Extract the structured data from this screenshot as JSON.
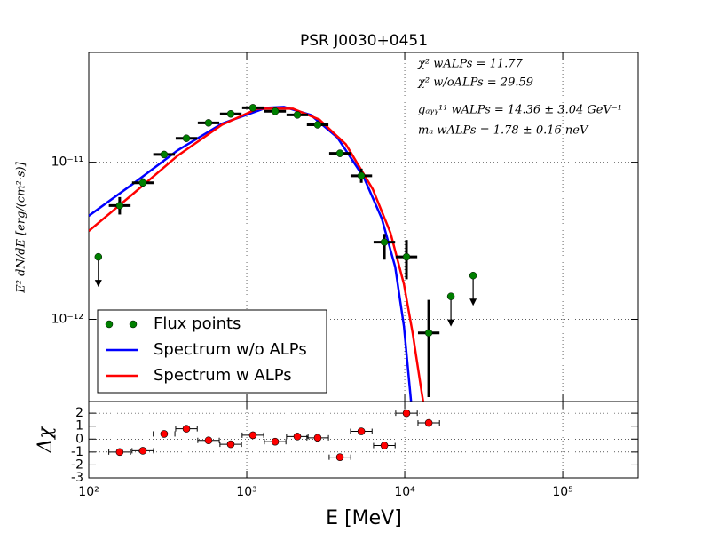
{
  "chart_data": [
    {
      "type": "line",
      "title": "PSR J0030+0451",
      "ylabel": "E² dN/dE [erg/(cm²·s)]",
      "annotations": [
        "χ² wALPs = 11.77",
        "χ² w/oALPs = 29.59",
        "gₐᵧᵧ¹¹ wALPs = 14.36 ± 3.04 GeV⁻¹",
        "mₐ wALPs = 1.78 ± 0.16 neV"
      ],
      "xscale": "log",
      "yscale": "log",
      "xlim": [
        100,
        300000
      ],
      "ylim": [
        3e-13,
        5e-11
      ],
      "xticks": [
        100,
        1000,
        10000,
        100000
      ],
      "yticks": [
        {
          "value": 1e-11,
          "label": "10⁻¹¹"
        },
        {
          "value": 1e-12,
          "label": "10⁻¹²"
        }
      ],
      "grid": true,
      "legend": "lower left",
      "series": [
        {
          "name": "Flux points",
          "type": "scatter",
          "color": "#007f00",
          "x": [
            115,
            157,
            220,
            300,
            415,
            573,
            792,
            1094,
            1513,
            2090,
            2812,
            3890,
            5310,
            7430,
            10260,
            14190,
            19600,
            27100
          ],
          "values": [
            2.5e-12,
            5.3e-12,
            7.4e-12,
            1.12e-11,
            1.42e-11,
            1.78e-11,
            2.03e-11,
            2.22e-11,
            2.11e-11,
            2e-11,
            1.73e-11,
            1.14e-11,
            8.2e-12,
            3.1e-12,
            2.5e-12,
            8.2e-13,
            1.4e-12,
            1.9e-12
          ],
          "upper_limits": [
            true,
            false,
            false,
            false,
            false,
            false,
            false,
            false,
            false,
            false,
            false,
            false,
            false,
            false,
            false,
            false,
            true,
            true
          ],
          "x_low": [
            null,
            134,
            188,
            256,
            355,
            490,
            677,
            935,
            1293,
            1786,
            2403,
            3325,
            4538,
            6350,
            8770,
            12130,
            null,
            null
          ],
          "x_high": [
            null,
            184,
            257,
            351,
            486,
            670,
            927,
            1280,
            1770,
            2445,
            3290,
            4551,
            6213,
            8693,
            12004,
            16600,
            null,
            null
          ],
          "y_low": [
            null,
            4.65e-12,
            7e-12,
            1.07e-11,
            1.37e-11,
            1.72e-11,
            1.97e-11,
            2.15e-11,
            2.04e-11,
            1.93e-11,
            1.66e-11,
            1.08e-11,
            7.4e-12,
            2.4e-12,
            1.8e-12,
            3.2e-13,
            null,
            null
          ],
          "y_high": [
            null,
            6e-12,
            7.9e-12,
            1.17e-11,
            1.47e-11,
            1.84e-11,
            2.1e-11,
            2.29e-11,
            2.18e-11,
            2.07e-11,
            1.8e-11,
            1.2e-11,
            9.1e-12,
            3.5e-12,
            3.2e-12,
            1.33e-12,
            null,
            null
          ]
        },
        {
          "name": "Spectrum w/o ALPs",
          "color": "#0000ff",
          "x": [
            100,
            191,
            365,
            697,
            1330,
            1720,
            2540,
            3740,
            5510,
            7150,
            8700,
            9890,
            11000
          ],
          "values": [
            4.56e-12,
            7.3e-12,
            1.19e-11,
            1.76e-11,
            2.22e-11,
            2.25e-11,
            2e-11,
            1.44e-11,
            8e-12,
            4.4e-12,
            2.16e-12,
            9e-13,
            2.9e-13
          ]
        },
        {
          "name": "Spectrum w ALPs",
          "color": "#ff0000",
          "x": [
            100,
            191,
            365,
            697,
            1166,
            1960,
            2880,
            4240,
            6270,
            8120,
            9890,
            11240,
            12780,
            13650
          ],
          "values": [
            3.65e-12,
            6.3e-12,
            1.1e-11,
            1.73e-11,
            2.19e-11,
            2.19e-11,
            1.87e-11,
            1.3e-11,
            6.75e-12,
            3.56e-12,
            1.67e-12,
            8.1e-13,
            3.47e-13,
            2.3e-13
          ]
        }
      ]
    },
    {
      "type": "scatter",
      "xlabel": "E [MeV]",
      "ylabel": "Δχ",
      "xscale": "log",
      "xlim": [
        100,
        300000
      ],
      "ylim": [
        -3,
        2.9
      ],
      "xticks": [
        {
          "value": 100,
          "label": "10²"
        },
        {
          "value": 1000,
          "label": "10³"
        },
        {
          "value": 10000,
          "label": "10⁴"
        },
        {
          "value": 100000,
          "label": "10⁵"
        }
      ],
      "yticks": [
        -3,
        -2,
        -1,
        0,
        1,
        2
      ],
      "grid": true,
      "color": "#ff0000",
      "x": [
        157,
        220,
        300,
        415,
        573,
        792,
        1094,
        1513,
        2090,
        2812,
        3890,
        5310,
        7430,
        10260,
        14190
      ],
      "values": [
        -1.0,
        -0.9,
        0.4,
        0.8,
        -0.1,
        -0.4,
        0.3,
        -0.2,
        0.2,
        0.1,
        -1.4,
        0.6,
        -0.5,
        2.0,
        1.25
      ],
      "x_low": [
        134,
        188,
        256,
        355,
        490,
        677,
        935,
        1293,
        1786,
        2403,
        3325,
        4538,
        6350,
        8770,
        12130
      ],
      "x_high": [
        184,
        257,
        351,
        486,
        670,
        927,
        1280,
        1770,
        2445,
        3290,
        4551,
        6213,
        8693,
        12004,
        16600
      ]
    }
  ]
}
